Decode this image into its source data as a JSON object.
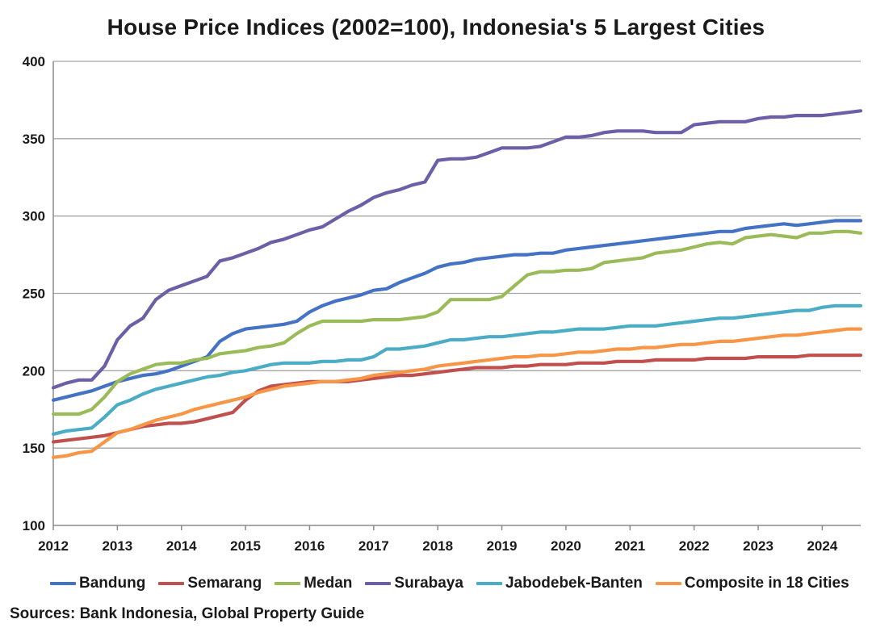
{
  "chart_data": {
    "type": "line",
    "title": "House Price Indices (2002=100), Indonesia's 5 Largest Cities",
    "xlabel": "",
    "ylabel": "",
    "xlim": [
      2012,
      2024.6
    ],
    "ylim": [
      100,
      400
    ],
    "x_ticks": [
      "2012",
      "2013",
      "2014",
      "2015",
      "2016",
      "2017",
      "2018",
      "2019",
      "2020",
      "2021",
      "2022",
      "2023",
      "2024"
    ],
    "y_ticks": [
      "100",
      "150",
      "200",
      "250",
      "300",
      "350",
      "400"
    ],
    "grid": "horizontal",
    "legend": "bottom",
    "x": [
      2012.0,
      2012.2,
      2012.4,
      2012.6,
      2012.8,
      2013.0,
      2013.2,
      2013.4,
      2013.6,
      2013.8,
      2014.0,
      2014.2,
      2014.4,
      2014.6,
      2014.8,
      2015.0,
      2015.2,
      2015.4,
      2015.6,
      2015.8,
      2016.0,
      2016.2,
      2016.4,
      2016.6,
      2016.8,
      2017.0,
      2017.2,
      2017.4,
      2017.6,
      2017.8,
      2018.0,
      2018.2,
      2018.4,
      2018.6,
      2018.8,
      2019.0,
      2019.2,
      2019.4,
      2019.6,
      2019.8,
      2020.0,
      2020.2,
      2020.4,
      2020.6,
      2020.8,
      2021.0,
      2021.2,
      2021.4,
      2021.6,
      2021.8,
      2022.0,
      2022.2,
      2022.4,
      2022.6,
      2022.8,
      2023.0,
      2023.2,
      2023.4,
      2023.6,
      2023.8,
      2024.0,
      2024.2,
      2024.4,
      2024.6
    ],
    "series": [
      {
        "name": "Bandung",
        "color": "#4472c4",
        "values": [
          181,
          183,
          185,
          187,
          190,
          193,
          195,
          197,
          198,
          200,
          203,
          206,
          209,
          219,
          224,
          227,
          228,
          229,
          230,
          232,
          238,
          242,
          245,
          247,
          249,
          252,
          253,
          257,
          260,
          263,
          267,
          269,
          270,
          272,
          273,
          274,
          275,
          275,
          276,
          276,
          278,
          279,
          280,
          281,
          282,
          283,
          284,
          285,
          286,
          287,
          288,
          289,
          290,
          290,
          292,
          293,
          294,
          295,
          294,
          295,
          296,
          297,
          297,
          297
        ]
      },
      {
        "name": "Semarang",
        "color": "#c0504d",
        "values": [
          154,
          155,
          156,
          157,
          158,
          160,
          162,
          164,
          165,
          166,
          166,
          167,
          169,
          171,
          173,
          181,
          187,
          190,
          191,
          192,
          193,
          193,
          193,
          193,
          194,
          195,
          196,
          197,
          197,
          198,
          199,
          200,
          201,
          202,
          202,
          202,
          203,
          203,
          204,
          204,
          204,
          205,
          205,
          205,
          206,
          206,
          206,
          207,
          207,
          207,
          207,
          208,
          208,
          208,
          208,
          209,
          209,
          209,
          209,
          210,
          210,
          210,
          210,
          210
        ]
      },
      {
        "name": "Medan",
        "color": "#9bbb59",
        "values": [
          172,
          172,
          172,
          175,
          183,
          193,
          198,
          201,
          204,
          205,
          205,
          207,
          208,
          211,
          212,
          213,
          215,
          216,
          218,
          224,
          229,
          232,
          232,
          232,
          232,
          233,
          233,
          233,
          234,
          235,
          238,
          246,
          246,
          246,
          246,
          248,
          255,
          262,
          264,
          264,
          265,
          265,
          266,
          270,
          271,
          272,
          273,
          276,
          277,
          278,
          280,
          282,
          283,
          282,
          286,
          287,
          288,
          287,
          286,
          289,
          289,
          290,
          290,
          289
        ]
      },
      {
        "name": "Surabaya",
        "color": "#6c5fa7",
        "values": [
          189,
          192,
          194,
          194,
          203,
          220,
          229,
          234,
          246,
          252,
          255,
          258,
          261,
          271,
          273,
          276,
          279,
          283,
          285,
          288,
          291,
          293,
          298,
          303,
          307,
          312,
          315,
          317,
          320,
          322,
          336,
          337,
          337,
          338,
          341,
          344,
          344,
          344,
          345,
          348,
          351,
          351,
          352,
          354,
          355,
          355,
          355,
          354,
          354,
          354,
          359,
          360,
          361,
          361,
          361,
          363,
          364,
          364,
          365,
          365,
          365,
          366,
          367,
          368
        ]
      },
      {
        "name": "Jabodebek-Banten",
        "color": "#4bacc6",
        "values": [
          159,
          161,
          162,
          163,
          170,
          178,
          181,
          185,
          188,
          190,
          192,
          194,
          196,
          197,
          199,
          200,
          202,
          204,
          205,
          205,
          205,
          206,
          206,
          207,
          207,
          209,
          214,
          214,
          215,
          216,
          218,
          220,
          220,
          221,
          222,
          222,
          223,
          224,
          225,
          225,
          226,
          227,
          227,
          227,
          228,
          229,
          229,
          229,
          230,
          231,
          232,
          233,
          234,
          234,
          235,
          236,
          237,
          238,
          239,
          239,
          241,
          242,
          242,
          242
        ]
      },
      {
        "name": "Composite in 18 Cities",
        "color": "#f79646",
        "values": [
          144,
          145,
          147,
          148,
          154,
          160,
          162,
          165,
          168,
          170,
          172,
          175,
          177,
          179,
          181,
          183,
          186,
          188,
          190,
          191,
          192,
          193,
          193,
          194,
          195,
          197,
          198,
          199,
          200,
          201,
          203,
          204,
          205,
          206,
          207,
          208,
          209,
          209,
          210,
          210,
          211,
          212,
          212,
          213,
          214,
          214,
          215,
          215,
          216,
          217,
          217,
          218,
          219,
          219,
          220,
          221,
          222,
          223,
          223,
          224,
          225,
          226,
          227,
          227
        ]
      }
    ]
  },
  "source_note": "Sources: Bank Indonesia, Global Property Guide"
}
